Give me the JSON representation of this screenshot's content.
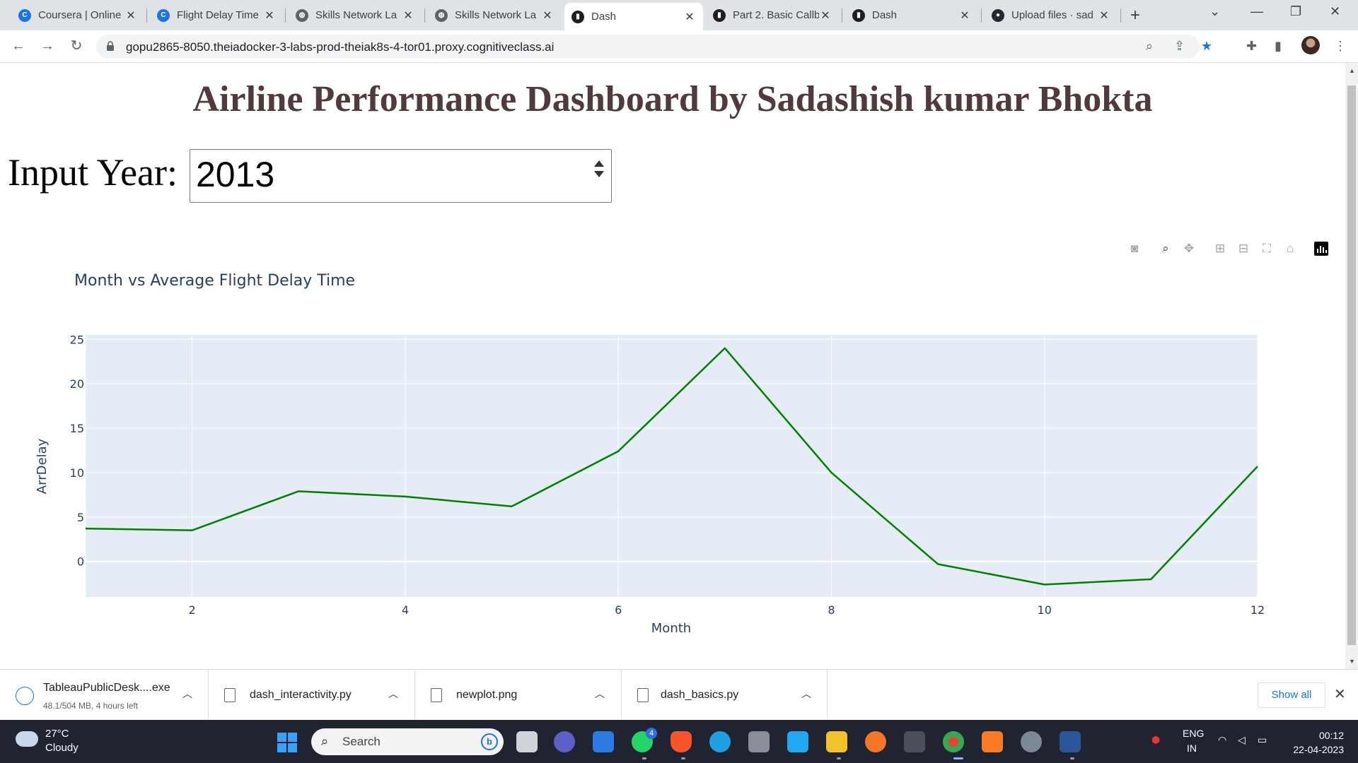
{
  "browser": {
    "tabs": [
      {
        "title": "Coursera | Online",
        "icon": "coursera-icon",
        "active": false
      },
      {
        "title": "Flight Delay Time",
        "icon": "coursera-icon",
        "active": false
      },
      {
        "title": "Skills Network La",
        "icon": "globe-icon",
        "active": false
      },
      {
        "title": "Skills Network La",
        "icon": "globe-icon",
        "active": false
      },
      {
        "title": "Dash",
        "icon": "dash-icon",
        "active": true
      },
      {
        "title": "Part 2. Basic Callb",
        "icon": "dash-icon",
        "active": false
      },
      {
        "title": "Dash",
        "icon": "dash-icon",
        "active": false
      },
      {
        "title": "Upload files · sad",
        "icon": "github-icon",
        "active": false
      }
    ],
    "url": "gopu2865-8050.theiadocker-3-labs-prod-theiak8s-4-tor01.proxy.cognitiveclass.ai"
  },
  "page": {
    "title": "Airline Performance Dashboard by Sadashish kumar Bhokta",
    "input_label": "Input Year:",
    "input_value": "2013"
  },
  "chart_data": {
    "type": "line",
    "title": "Month vs Average Flight Delay Time",
    "xlabel": "Month",
    "ylabel": "ArrDelay",
    "x": [
      1,
      2,
      3,
      4,
      5,
      6,
      7,
      8,
      9,
      10,
      11,
      12
    ],
    "series": [
      {
        "values": [
          3.7,
          3.5,
          7.9,
          7.3,
          6.2,
          12.4,
          24.0,
          10.0,
          -0.3,
          -2.6,
          -2.0,
          10.7
        ],
        "color": "#008000"
      }
    ],
    "xlim": [
      1,
      12
    ],
    "ylim": [
      -4,
      25.5
    ],
    "xticks": [
      2,
      4,
      6,
      8,
      10,
      12
    ],
    "yticks": [
      0,
      5,
      10,
      15,
      20,
      25
    ],
    "grid": true,
    "plot_bg": "#E5ECF6"
  },
  "downloads": [
    {
      "name": "TableauPublicDesk....exe",
      "meta": "48.1/504 MB, 4 hours left"
    },
    {
      "name": "dash_interactivity.py"
    },
    {
      "name": "newplot.png"
    },
    {
      "name": "dash_basics.py"
    }
  ],
  "downloads_show_all": "Show all",
  "taskbar": {
    "weather_temp": "27°C",
    "weather_desc": "Cloudy",
    "search_placeholder": "Search",
    "lang": "ENG",
    "region": "IN",
    "time": "00:12",
    "date": "22-04-2023",
    "whatsapp_badge": "4"
  }
}
